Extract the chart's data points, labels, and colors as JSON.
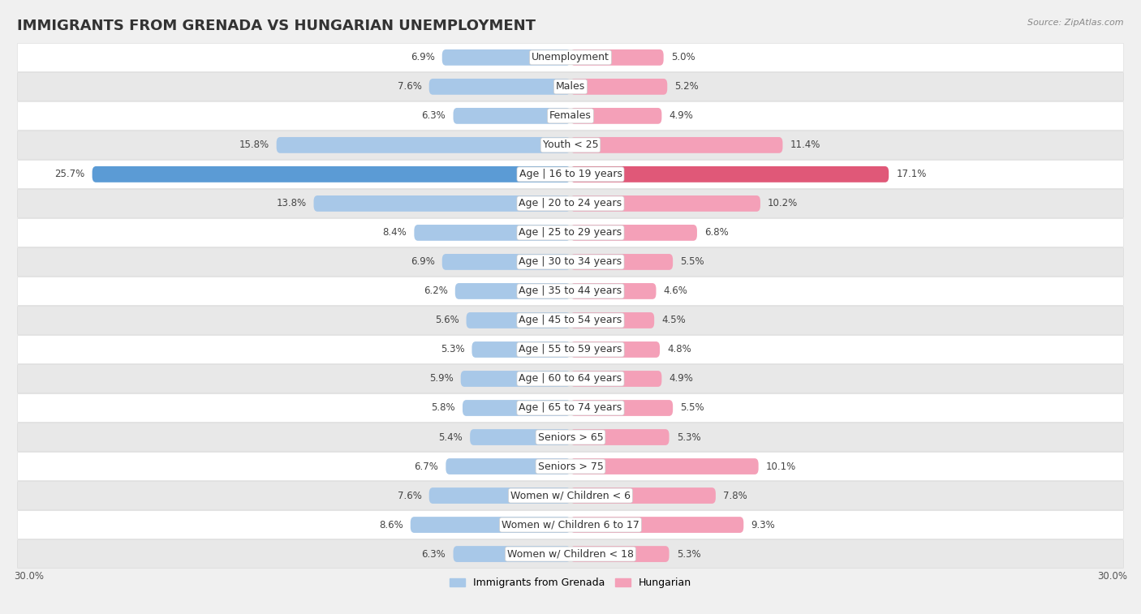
{
  "title": "IMMIGRANTS FROM GRENADA VS HUNGARIAN UNEMPLOYMENT",
  "source": "Source: ZipAtlas.com",
  "categories": [
    "Unemployment",
    "Males",
    "Females",
    "Youth < 25",
    "Age | 16 to 19 years",
    "Age | 20 to 24 years",
    "Age | 25 to 29 years",
    "Age | 30 to 34 years",
    "Age | 35 to 44 years",
    "Age | 45 to 54 years",
    "Age | 55 to 59 years",
    "Age | 60 to 64 years",
    "Age | 65 to 74 years",
    "Seniors > 65",
    "Seniors > 75",
    "Women w/ Children < 6",
    "Women w/ Children 6 to 17",
    "Women w/ Children < 18"
  ],
  "left_values": [
    6.9,
    7.6,
    6.3,
    15.8,
    25.7,
    13.8,
    8.4,
    6.9,
    6.2,
    5.6,
    5.3,
    5.9,
    5.8,
    5.4,
    6.7,
    7.6,
    8.6,
    6.3
  ],
  "right_values": [
    5.0,
    5.2,
    4.9,
    11.4,
    17.1,
    10.2,
    6.8,
    5.5,
    4.6,
    4.5,
    4.8,
    4.9,
    5.5,
    5.3,
    10.1,
    7.8,
    9.3,
    5.3
  ],
  "left_color": "#a8c8e8",
  "right_color": "#f4a0b8",
  "left_highlight_color": "#5b9bd5",
  "right_highlight_color": "#e05878",
  "highlight_index": 4,
  "axis_max": 30.0,
  "legend_left": "Immigrants from Grenada",
  "legend_right": "Hungarian",
  "bg_color": "#f0f0f0",
  "row_color_even": "#f8f8f8",
  "row_color_odd": "#e8e8e8",
  "title_fontsize": 13,
  "label_fontsize": 9,
  "value_fontsize": 8.5
}
